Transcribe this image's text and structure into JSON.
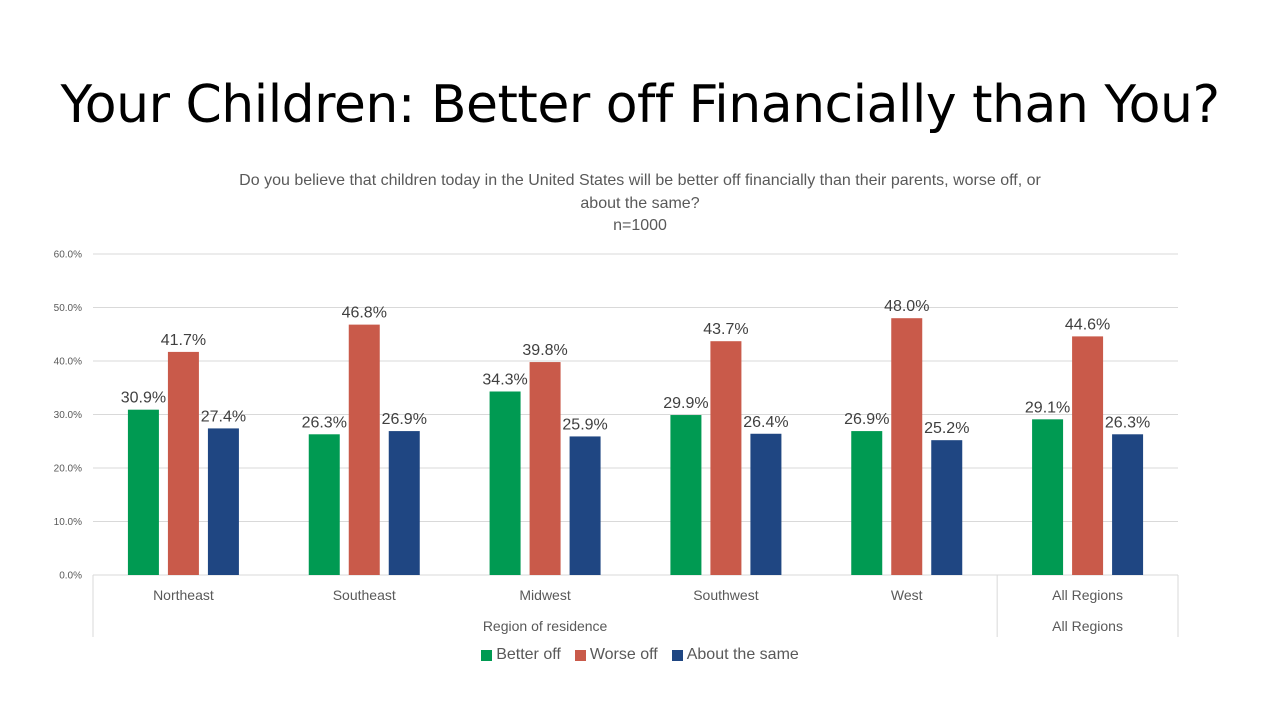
{
  "slide": {
    "title": "Your Children: Better off Financially than You?"
  },
  "chart_data": {
    "type": "bar",
    "title_lines": [
      "Do you believe that children today in the United States will be better off financially than their parents, worse off, or",
      "about the same?",
      "n=1000"
    ],
    "categories": [
      "Northeast",
      "Southeast",
      "Midwest",
      "Southwest",
      "West",
      "All Regions"
    ],
    "groups": [
      {
        "label": "Region of residence",
        "categories": [
          "Northeast",
          "Southeast",
          "Midwest",
          "Southwest",
          "West"
        ]
      },
      {
        "label": "All Regions",
        "categories": [
          "All Regions"
        ]
      }
    ],
    "series": [
      {
        "name": "Better off",
        "color": "#009a52",
        "values": [
          30.9,
          26.3,
          34.3,
          29.9,
          26.9,
          29.1
        ]
      },
      {
        "name": "Worse off",
        "color": "#c95a4a",
        "values": [
          41.7,
          46.8,
          39.8,
          43.7,
          48.0,
          44.6
        ]
      },
      {
        "name": "About the same",
        "color": "#1f4682",
        "values": [
          27.4,
          26.9,
          25.9,
          26.4,
          25.2,
          26.3
        ]
      }
    ],
    "ylim": [
      0,
      60
    ],
    "yticks": [
      "0.0%",
      "10.0%",
      "20.0%",
      "30.0%",
      "40.0%",
      "50.0%",
      "60.0%"
    ],
    "value_suffix": "%",
    "grid": true,
    "legend": "bottom"
  }
}
